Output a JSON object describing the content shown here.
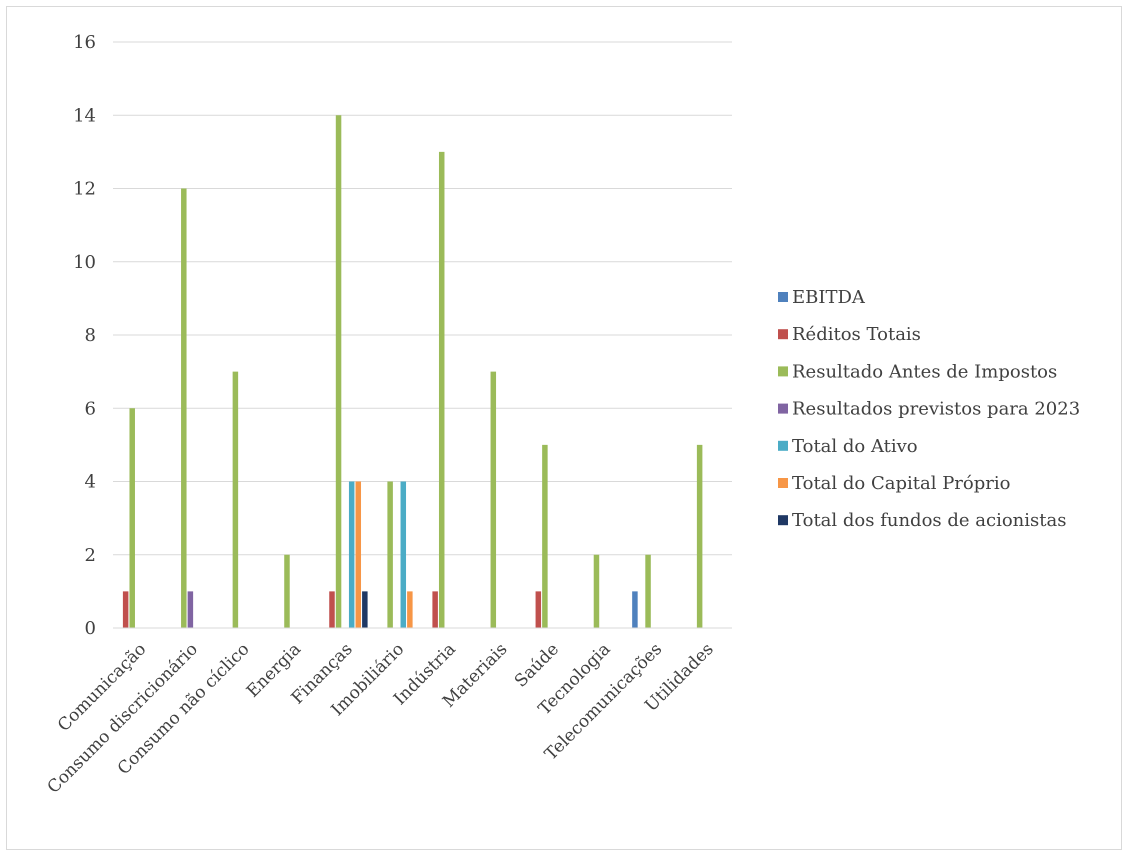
{
  "chart_data": {
    "type": "bar",
    "categories": [
      "Comunicação",
      "Consumo discricionário",
      "Consumo não cíclico",
      "Energia",
      "Finanças",
      "Imobiliário",
      "Indústria",
      "Materiais",
      "Saúde",
      "Tecnologia",
      "Telecomunicações",
      "Utilidades"
    ],
    "series": [
      {
        "name": "EBITDA",
        "color": "#4f81bd",
        "values": [
          0,
          0,
          0,
          0,
          0,
          0,
          0,
          0,
          0,
          0,
          1,
          0
        ]
      },
      {
        "name": "Réditos Totais",
        "color": "#c0504d",
        "values": [
          1,
          0,
          0,
          0,
          1,
          0,
          1,
          0,
          1,
          0,
          0,
          0
        ]
      },
      {
        "name": "Resultado Antes de Impostos",
        "color": "#9bbb59",
        "values": [
          6,
          12,
          7,
          2,
          14,
          4,
          13,
          7,
          5,
          2,
          2,
          5
        ]
      },
      {
        "name": "Resultados previstos para 2023",
        "color": "#8064a2",
        "values": [
          0,
          1,
          0,
          0,
          0,
          0,
          0,
          0,
          0,
          0,
          0,
          0
        ]
      },
      {
        "name": "Total do Ativo",
        "color": "#4bacc6",
        "values": [
          0,
          0,
          0,
          0,
          4,
          4,
          0,
          0,
          0,
          0,
          0,
          0
        ]
      },
      {
        "name": "Total do Capital Próprio",
        "color": "#f79646",
        "values": [
          0,
          0,
          0,
          0,
          4,
          1,
          0,
          0,
          0,
          0,
          0,
          0
        ]
      },
      {
        "name": "Total dos fundos de acionistas",
        "color": "#1f3864",
        "values": [
          0,
          0,
          0,
          0,
          1,
          0,
          0,
          0,
          0,
          0,
          0,
          0
        ]
      }
    ],
    "ylim": [
      0,
      16
    ],
    "yticks": [
      "0",
      "2",
      "4",
      "6",
      "8",
      "10",
      "12",
      "14",
      "16"
    ],
    "grid": true,
    "legend_position": "right",
    "title": "",
    "xlabel": "",
    "ylabel": ""
  }
}
